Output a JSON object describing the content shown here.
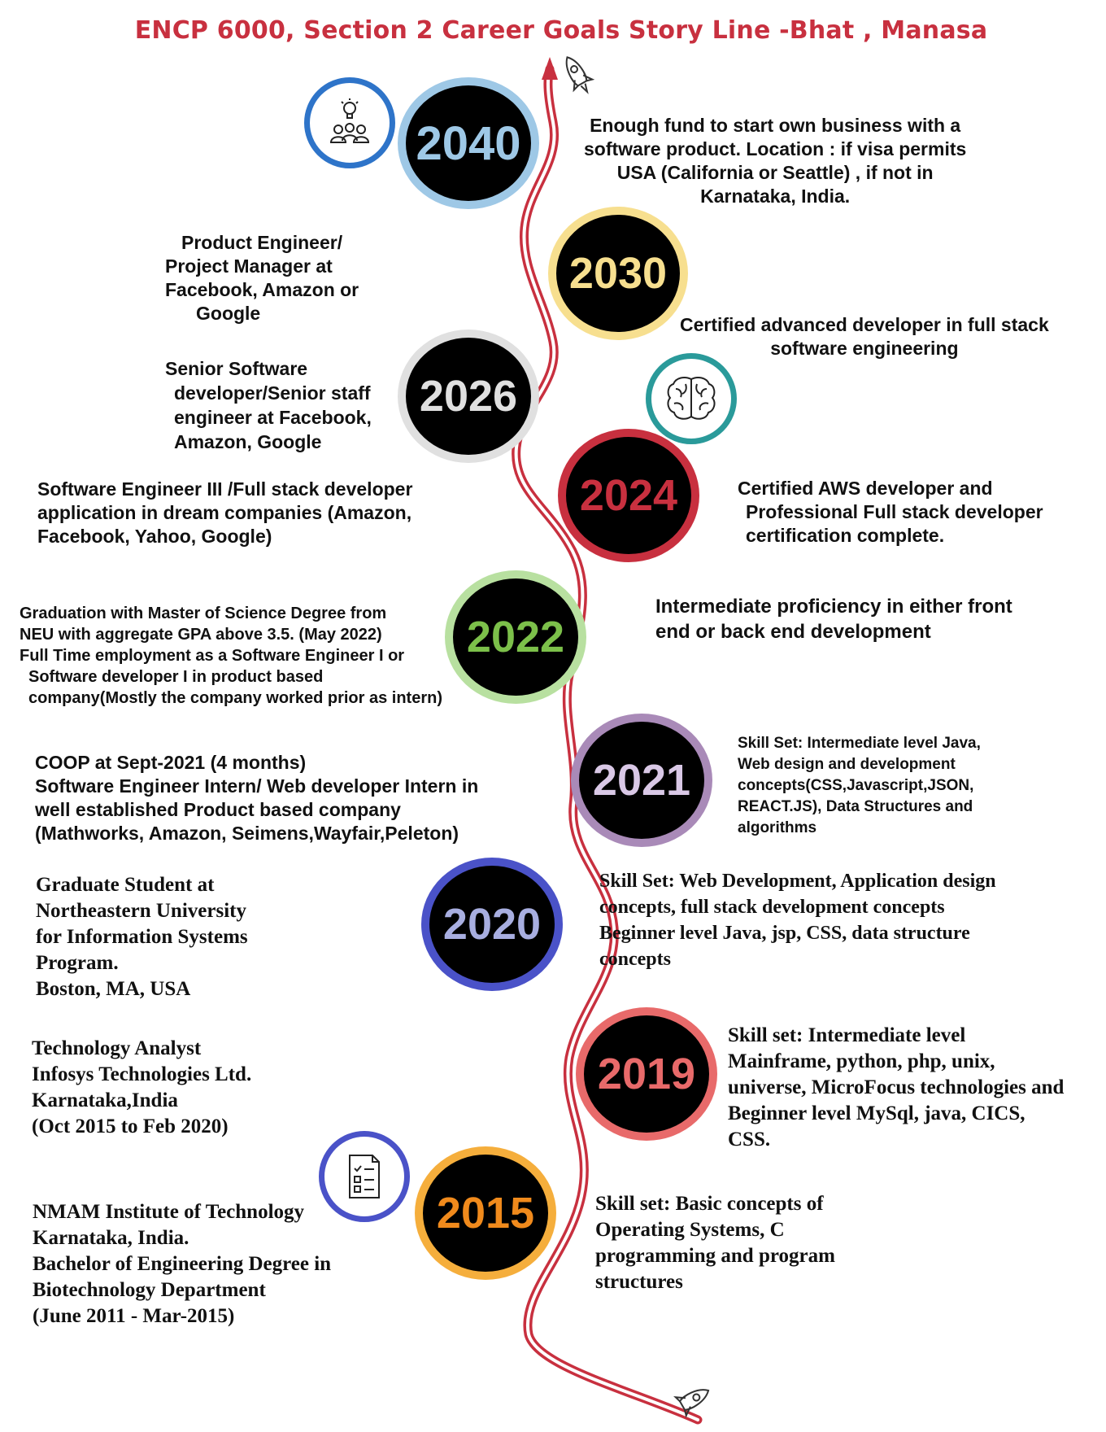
{
  "title": "ENCP 6000, Section 2 Career Goals Story Line -Bhat , Manasa",
  "milestones": [
    {
      "year": "2040",
      "color": "#9ec8e6",
      "text": [
        "Enough fund to start own business with a",
        "software product. Location : if visa permits",
        "USA (California or Seattle) , if not in",
        "Karnataka, India."
      ]
    },
    {
      "year": "2030",
      "color": "#f7df8f",
      "left_text": [
        "Product Engineer/",
        "Project Manager at",
        "Facebook, Amazon or",
        "Google"
      ],
      "right_text": [
        "Certified advanced developer in full stack",
        "software engineering"
      ]
    },
    {
      "year": "2026",
      "color": "#e0e0e0",
      "text": [
        "Senior Software",
        "developer/Senior staff",
        "engineer at Facebook,",
        "Amazon, Google"
      ]
    },
    {
      "year": "2024",
      "color": "#c8303f",
      "left_text": [
        "Software Engineer III /Full stack developer",
        "application in dream companies (Amazon,",
        "Facebook, Yahoo, Google)"
      ],
      "right_text": [
        "Certified AWS developer and",
        "Professional Full stack developer",
        "certification complete."
      ]
    },
    {
      "year": "2022",
      "color": "#b8e0a0",
      "left_text": [
        "Graduation with Master of Science Degree from",
        "NEU with aggregate GPA above 3.5. (May 2022)",
        "Full Time employment as a Software Engineer I or",
        "Software developer I in product based",
        "company(Mostly the company worked prior as intern)"
      ],
      "right_text": [
        "Intermediate proficiency in  either front",
        "end or back end development"
      ]
    },
    {
      "year": "2021",
      "color": "#a98ab8",
      "left_text": [
        "COOP at Sept-2021 (4 months)",
        "Software Engineer Intern/ Web developer Intern in",
        "well established Product based company",
        "(Mathworks, Amazon, Seimens,Wayfair,Peleton)"
      ],
      "right_text": [
        "Skill Set: Intermediate level Java,",
        "Web design and development",
        "concepts(CSS,Javascript,JSON,",
        "REACT.JS), Data Structures and",
        "algorithms"
      ]
    },
    {
      "year": "2020",
      "color": "#4a52c8",
      "left_text": [
        "Graduate Student at",
        "Northeastern University",
        "for Information Systems",
        "Program.",
        "Boston, MA, USA"
      ],
      "right_text": [
        "Skill Set: Web Development, Application design",
        "concepts, full stack development concepts",
        "Beginner level Java, jsp, CSS, data structure",
        "concepts"
      ]
    },
    {
      "year": "2019",
      "color": "#e86a6a",
      "left_text": [
        "Technology Analyst",
        "Infosys Technologies Ltd.",
        "Karnataka,India",
        "(Oct 2015 to Feb 2020)"
      ],
      "right_text": [
        "Skill set: Intermediate level",
        "Mainframe, python, php, unix,",
        "universe, MicroFocus technologies and",
        "Beginner level MySql, java,  CICS,",
        "CSS."
      ]
    },
    {
      "year": "2015",
      "color": "#f5ae3c",
      "left_text": [
        "NMAM Institute of Technology",
        "Karnataka, India.",
        "Bachelor of Engineering Degree in",
        "Biotechnology Department",
        "(June 2011 - Mar-2015)"
      ],
      "right_text": [
        "Skill set: Basic concepts of",
        "Operating Systems, C",
        "programming and program",
        "structures"
      ]
    }
  ],
  "icons": [
    {
      "name": "team-idea-icon",
      "color": "#2e74c9"
    },
    {
      "name": "brain-icon",
      "color": "#2a9a9a"
    },
    {
      "name": "checklist-icon",
      "color": "#4a52c8"
    },
    {
      "name": "rocket-icon",
      "color": "#333333"
    }
  ],
  "road_color": "#c8303f"
}
